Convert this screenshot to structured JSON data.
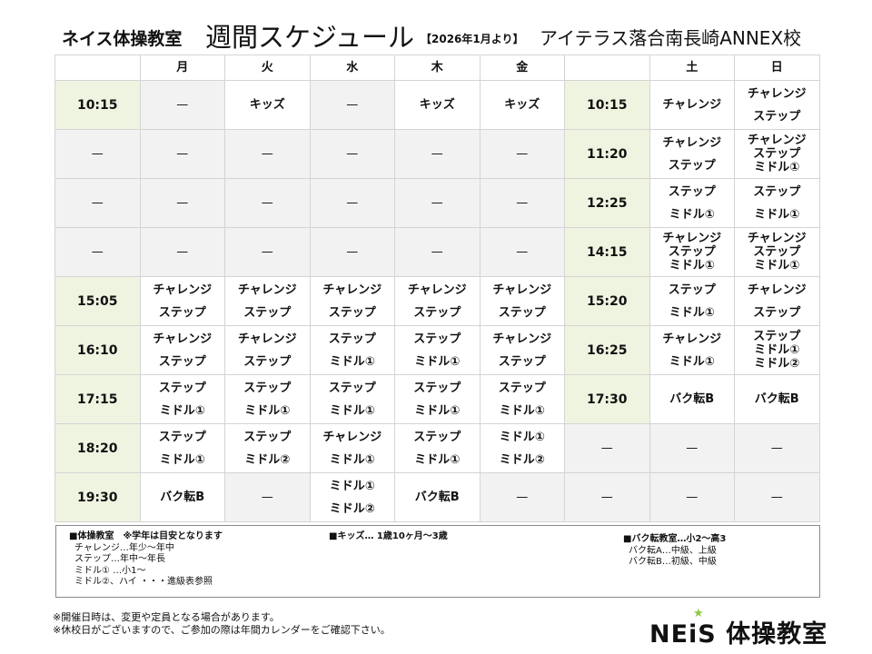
{
  "header": {
    "brand": "ネイス体操教室",
    "title": "週間スケジュール",
    "since": "【2026年1月より】",
    "school": "アイテラス落合南長崎ANNEX校"
  },
  "table": {
    "columns": [
      "",
      "月",
      "火",
      "水",
      "木",
      "金",
      "",
      "土",
      "日"
    ],
    "rows": [
      {
        "time": "10:15",
        "weekday": [
          [
            "—"
          ],
          [
            "キッズ"
          ],
          [
            "—"
          ],
          [
            "キッズ"
          ],
          [
            "キッズ"
          ]
        ],
        "time2": "10:15",
        "weekend": [
          [
            "チャレンジ"
          ],
          [
            "チャレンジ",
            "ステップ"
          ]
        ]
      },
      {
        "time": "—",
        "weekday": [
          [
            "—"
          ],
          [
            "—"
          ],
          [
            "—"
          ],
          [
            "—"
          ],
          [
            "—"
          ]
        ],
        "time2": "11:20",
        "weekend": [
          [
            "チャレンジ",
            "ステップ"
          ],
          [
            "チャレンジ",
            "ステップ",
            "ミドル①"
          ]
        ]
      },
      {
        "time": "—",
        "weekday": [
          [
            "—"
          ],
          [
            "—"
          ],
          [
            "—"
          ],
          [
            "—"
          ],
          [
            "—"
          ]
        ],
        "time2": "12:25",
        "weekend": [
          [
            "ステップ",
            "ミドル①"
          ],
          [
            "ステップ",
            "ミドル①"
          ]
        ]
      },
      {
        "time": "—",
        "weekday": [
          [
            "—"
          ],
          [
            "—"
          ],
          [
            "—"
          ],
          [
            "—"
          ],
          [
            "—"
          ]
        ],
        "time2": "14:15",
        "weekend": [
          [
            "チャレンジ",
            "ステップ",
            "ミドル①"
          ],
          [
            "チャレンジ",
            "ステップ",
            "ミドル①"
          ]
        ]
      },
      {
        "time": "15:05",
        "weekday": [
          [
            "チャレンジ",
            "ステップ"
          ],
          [
            "チャレンジ",
            "ステップ"
          ],
          [
            "チャレンジ",
            "ステップ"
          ],
          [
            "チャレンジ",
            "ステップ"
          ],
          [
            "チャレンジ",
            "ステップ"
          ]
        ],
        "time2": "15:20",
        "weekend": [
          [
            "ステップ",
            "ミドル①"
          ],
          [
            "チャレンジ",
            "ステップ"
          ]
        ]
      },
      {
        "time": "16:10",
        "weekday": [
          [
            "チャレンジ",
            "ステップ"
          ],
          [
            "チャレンジ",
            "ステップ"
          ],
          [
            "ステップ",
            "ミドル①"
          ],
          [
            "ステップ",
            "ミドル①"
          ],
          [
            "チャレンジ",
            "ステップ"
          ]
        ],
        "time2": "16:25",
        "weekend": [
          [
            "チャレンジ",
            "ミドル①"
          ],
          [
            "ステップ",
            "ミドル①",
            "ミドル②"
          ]
        ]
      },
      {
        "time": "17:15",
        "weekday": [
          [
            "ステップ",
            "ミドル①"
          ],
          [
            "ステップ",
            "ミドル①"
          ],
          [
            "ステップ",
            "ミドル①"
          ],
          [
            "ステップ",
            "ミドル①"
          ],
          [
            "ステップ",
            "ミドル①"
          ]
        ],
        "time2": "17:30",
        "weekend": [
          [
            "バク転B"
          ],
          [
            "バク転B"
          ]
        ]
      },
      {
        "time": "18:20",
        "weekday": [
          [
            "ステップ",
            "ミドル①"
          ],
          [
            "ステップ",
            "ミドル②"
          ],
          [
            "チャレンジ",
            "ミドル①"
          ],
          [
            "ステップ",
            "ミドル①"
          ],
          [
            "ミドル①",
            "ミドル②"
          ]
        ],
        "time2": "—",
        "weekend": [
          [
            "—"
          ],
          [
            "—"
          ]
        ]
      },
      {
        "time": "19:30",
        "weekday": [
          [
            "バク転B"
          ],
          [
            "—"
          ],
          [
            "ミドル①",
            "ミドル②"
          ],
          [
            "バク転B"
          ],
          [
            "—"
          ]
        ],
        "time2": "—",
        "weekend": [
          [
            "—"
          ],
          [
            "—"
          ]
        ]
      }
    ]
  },
  "legend": {
    "gym": [
      "■体操教室　※学年は目安となります",
      "チャレンジ…年少～年中",
      "ステップ…年中～年長",
      "ミドル① …小1～",
      "ミドル②、ハイ ・・・進級表参照"
    ],
    "kids": [
      "■キッズ… 1歳10ヶ月～3歳"
    ],
    "backflip": [
      "■バク転教室…小2～高3",
      "バク転A…中級、上級",
      "バク転B…初級、中級"
    ]
  },
  "notes": [
    "※開催日時は、変更や定員となる場合があります。",
    "※休校日がございますので、ご参加の際は年間カレンダーをご確認下さい。"
  ],
  "logo": {
    "mark": "NEiS",
    "text": "体操教室",
    "star_color": "#8cc63f"
  }
}
